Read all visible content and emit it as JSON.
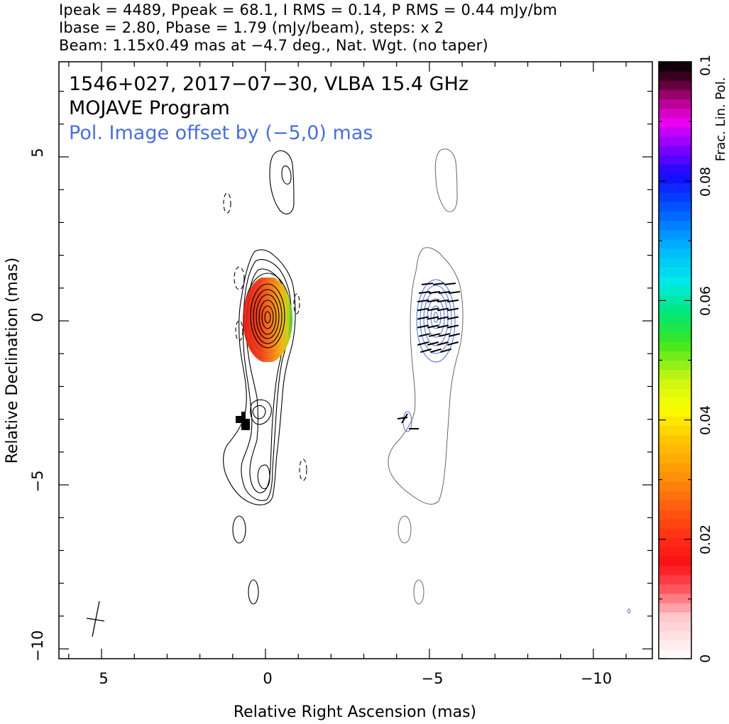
{
  "header": {
    "line1": "Ipeak = 4489, Ppeak = 68.1, I RMS = 0.14, P RMS = 0.44 mJy/bm",
    "line2": "Ibase = 2.80, Pbase = 1.79 (mJy/beam), steps: x 2",
    "line3": "Beam: 1.15x0.49 mas at −4.7 deg., Nat. Wgt. (no taper)"
  },
  "inset": {
    "line1": "1546+027, 2017−07−30, VLBA 15.4 GHz",
    "line2": "MOJAVE Program",
    "line3": "Pol. Image offset by (−5,0) mas"
  },
  "chart_data": {
    "type": "contour",
    "xlabel": "Relative Right Ascension (mas)",
    "ylabel": "Relative Declination (mas)",
    "xlim": [
      6.3,
      -11.8
    ],
    "ylim": [
      -10.3,
      7.9
    ],
    "x_ticks": [
      5,
      0,
      -5,
      -10
    ],
    "x_tick_labels": [
      "5",
      "0",
      "−5",
      "−10"
    ],
    "y_ticks": [
      5,
      0,
      -5,
      -10
    ],
    "y_tick_labels": [
      "5",
      "0",
      "−5",
      "−10"
    ],
    "source": "1546+027",
    "date": "2017-07-30",
    "array": "VLBA",
    "frequency": "15.4 GHz",
    "program": "MOJAVE Program",
    "ipeak_mJy_per_beam": 4489,
    "ppeak_mJy_per_beam": 68.1,
    "i_rms_mJy_per_beam": 0.14,
    "p_rms_mJy_per_beam": 0.44,
    "ibase_mJy_per_beam": 2.8,
    "pbase_mJy_per_beam": 1.79,
    "contour_step_factor": 2,
    "beam": {
      "major_mas": 1.15,
      "minor_mas": 0.49,
      "pa_deg": -4.7,
      "weighting": "Nat. Wgt. (no taper)"
    },
    "pol_offset_mas": [
      -5,
      0
    ],
    "colorbar": {
      "label": "Frac. Lin. Pol.",
      "range": [
        0,
        0.1
      ],
      "ticks": [
        0,
        0.02,
        0.04,
        0.06,
        0.08,
        0.1
      ],
      "tick_labels": [
        "0",
        "0.02",
        "0.04",
        "0.06",
        "0.08",
        "0.1"
      ]
    },
    "core_fractional_pol": [
      0.01,
      0.045
    ],
    "colors": {
      "stokes_i": "#000000",
      "pol_contours": "#4a6fd6",
      "pol_title": "#4a6fd6"
    }
  }
}
